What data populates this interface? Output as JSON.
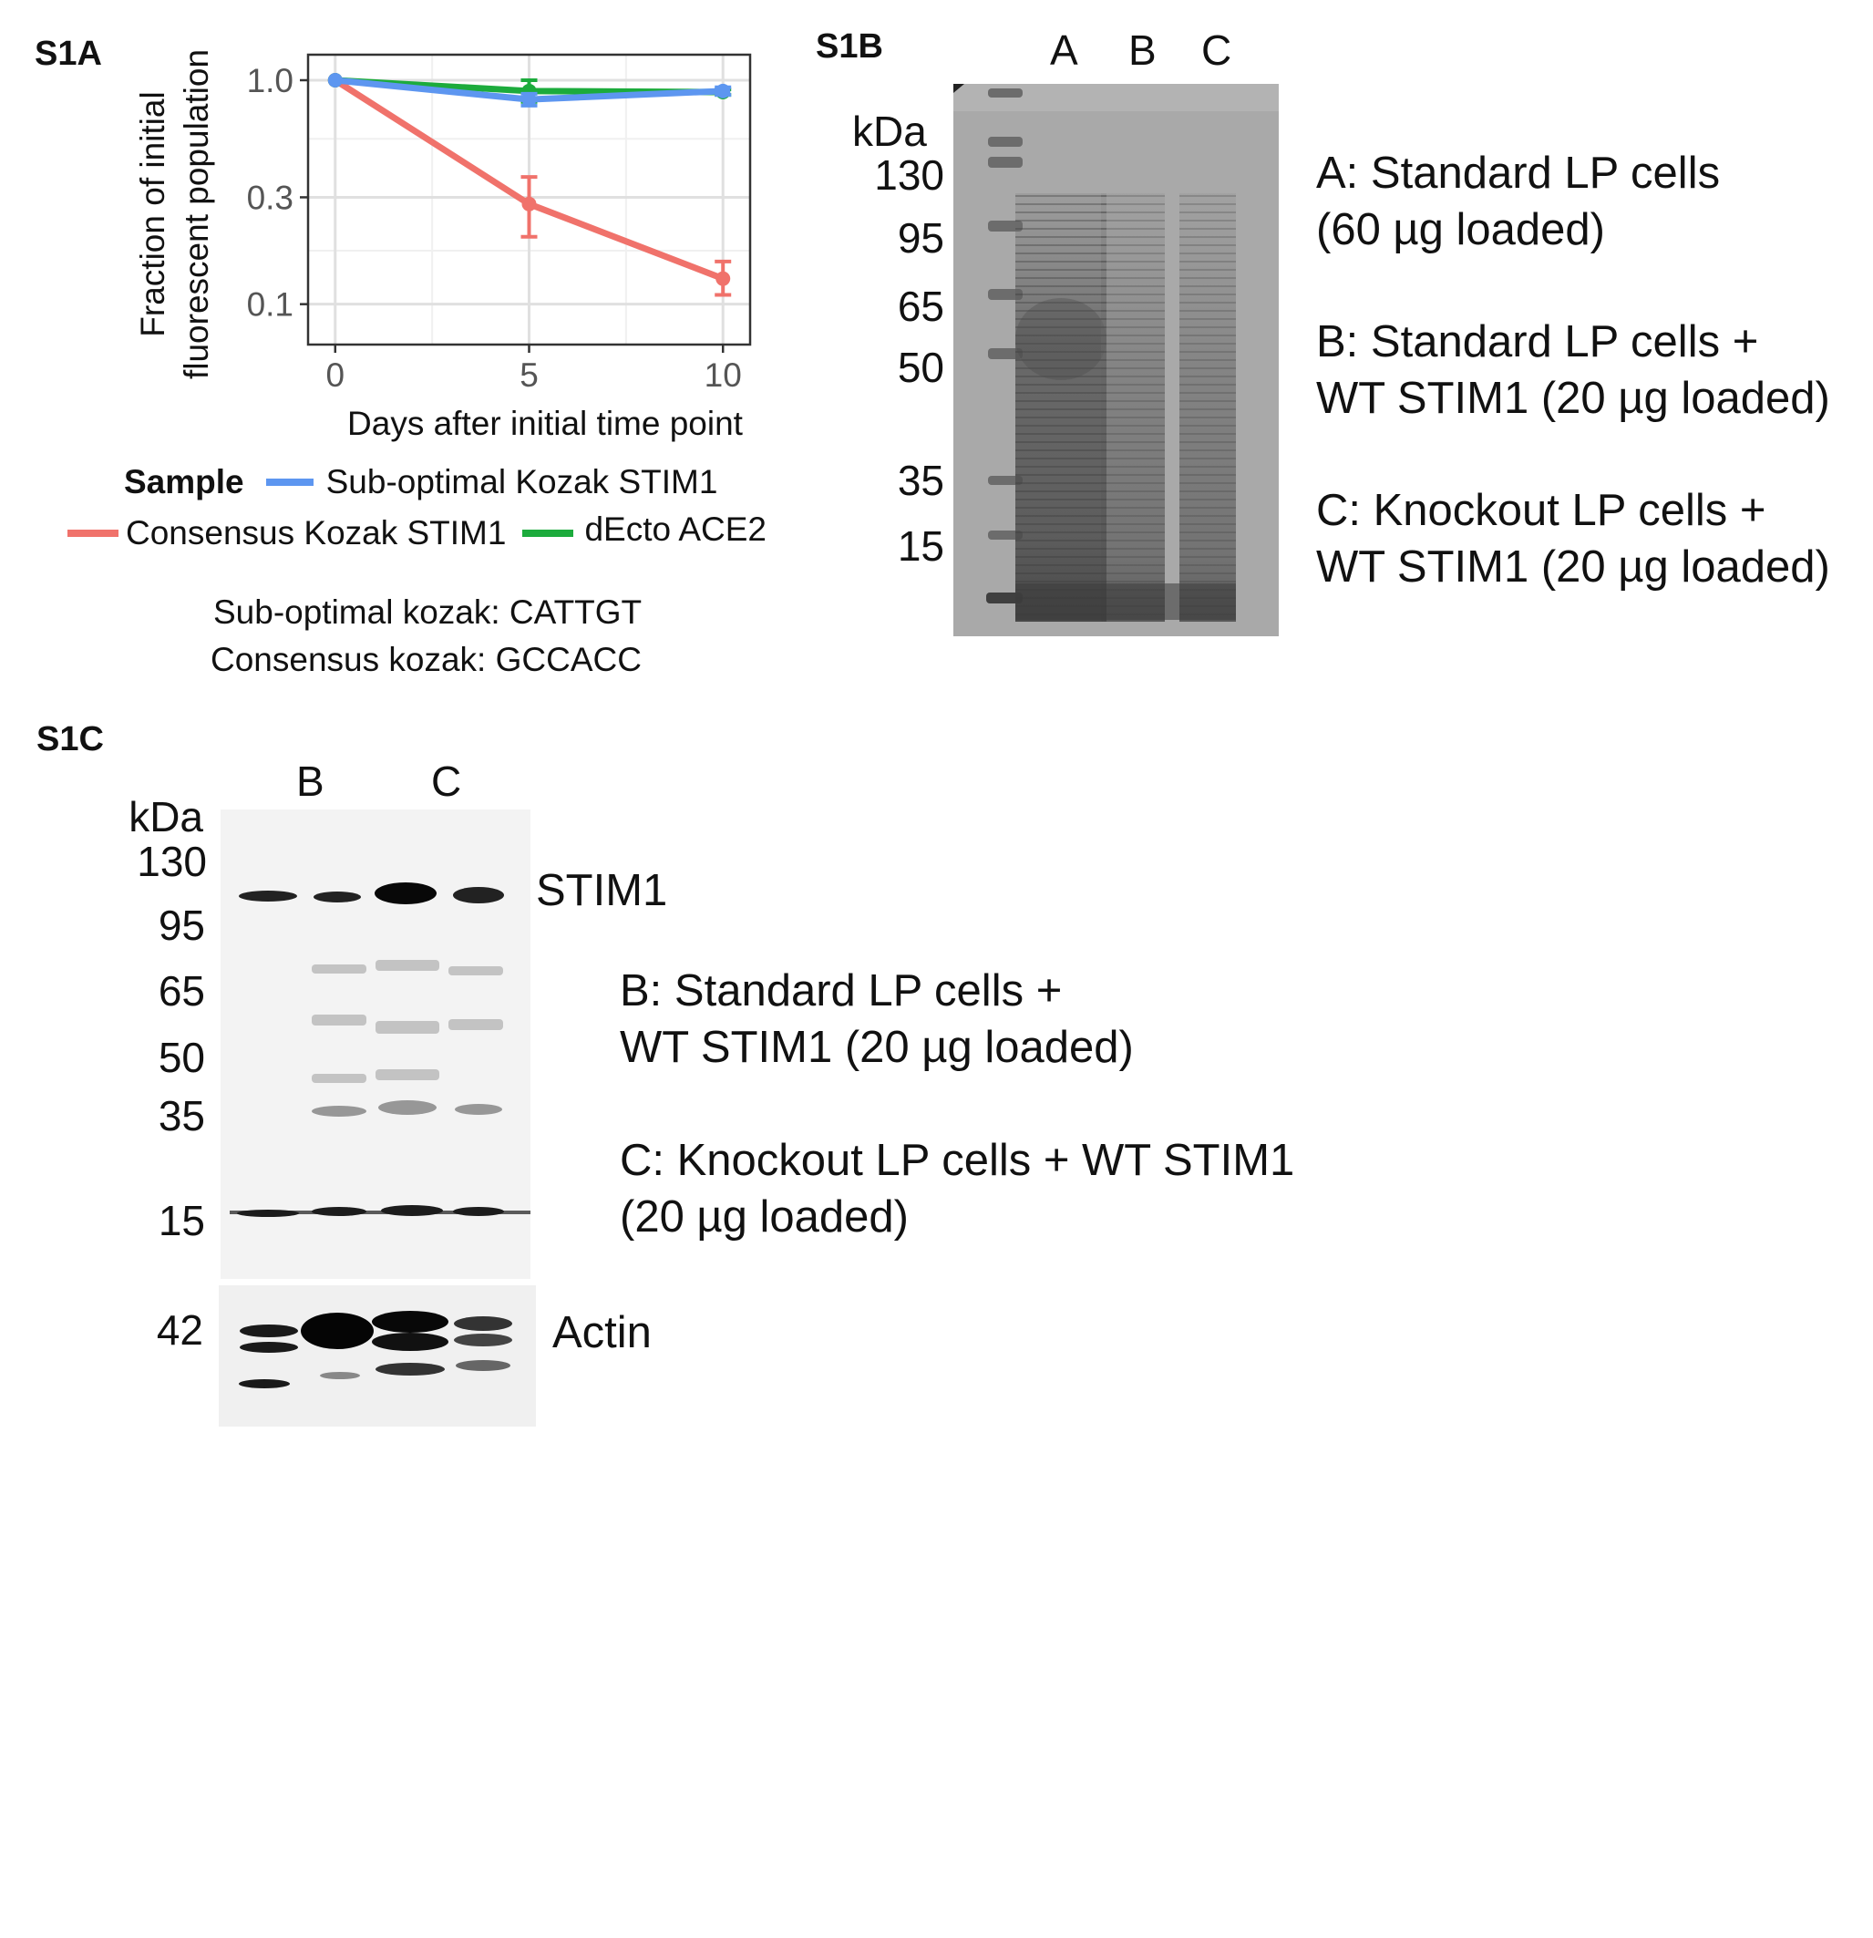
{
  "panels": {
    "a_label": "S1A",
    "b_label": "S1B",
    "c_label": "S1C"
  },
  "chart_data": {
    "type": "line",
    "title": "",
    "xlabel": "Days after initial time point",
    "ylabel_lines": [
      "Fraction of initial",
      "fluorescent population"
    ],
    "x": [
      0,
      5,
      10
    ],
    "xlim": [
      -0.7,
      10.7
    ],
    "ylim": [
      0.066,
      1.3
    ],
    "y_scale": "log",
    "x_ticks": [
      0,
      5,
      10
    ],
    "y_ticks": [
      1.0,
      0.3,
      0.1
    ],
    "y_tick_labels": [
      "1.0",
      "0.3",
      "0.1"
    ],
    "grid": true,
    "legend": {
      "title": "Sample",
      "placement": "bottom"
    },
    "series": [
      {
        "name": "Consensus Kozak STIM1",
        "color": "#f0726b",
        "values": [
          1.0,
          0.28,
          0.13
        ],
        "err_low": [
          1.0,
          0.2,
          0.11
        ],
        "err_high": [
          1.0,
          0.37,
          0.155
        ]
      },
      {
        "name": "dEcto ACE2",
        "color": "#1cab3c",
        "values": [
          1.0,
          0.895,
          0.885
        ],
        "err_low": [
          1.0,
          0.8,
          0.86
        ],
        "err_high": [
          1.0,
          1.0,
          0.91
        ]
      },
      {
        "name": "Sub-optimal Kozak STIM1",
        "color": "#5d96f0",
        "values": [
          1.0,
          0.82,
          0.895
        ],
        "err_low": [
          1.0,
          0.77,
          0.86
        ],
        "err_high": [
          1.0,
          0.87,
          0.93
        ]
      }
    ]
  },
  "kozak_notes": {
    "line1": "Sub-optimal kozak: CATTGT",
    "line2": "Consensus kozak: GCCACC"
  },
  "gel_b": {
    "lane_labels": [
      "A",
      "B",
      "C"
    ],
    "unit": "kDa",
    "markers": [
      "130",
      "95",
      "65",
      "50",
      "35",
      "15"
    ],
    "descriptions": [
      [
        "A: Standard LP cells",
        "(60 µg loaded)"
      ],
      [
        "B: Standard LP cells +",
        "WT STIM1 (20 µg loaded)"
      ],
      [
        "C: Knockout LP cells +",
        "WT STIM1 (20 µg loaded)"
      ]
    ]
  },
  "blot_c": {
    "lane_labels": [
      "B",
      "C"
    ],
    "unit": "kDa",
    "markers": [
      "130",
      "95",
      "65",
      "50",
      "35",
      "15"
    ],
    "band_stim1": "STIM1",
    "actin_marker": "42",
    "band_actin": "Actin",
    "descriptions": [
      [
        "B: Standard LP cells +",
        "WT STIM1 (20 µg loaded)"
      ],
      [
        "C: Knockout LP cells + WT STIM1",
        "(20 µg loaded)"
      ]
    ]
  }
}
